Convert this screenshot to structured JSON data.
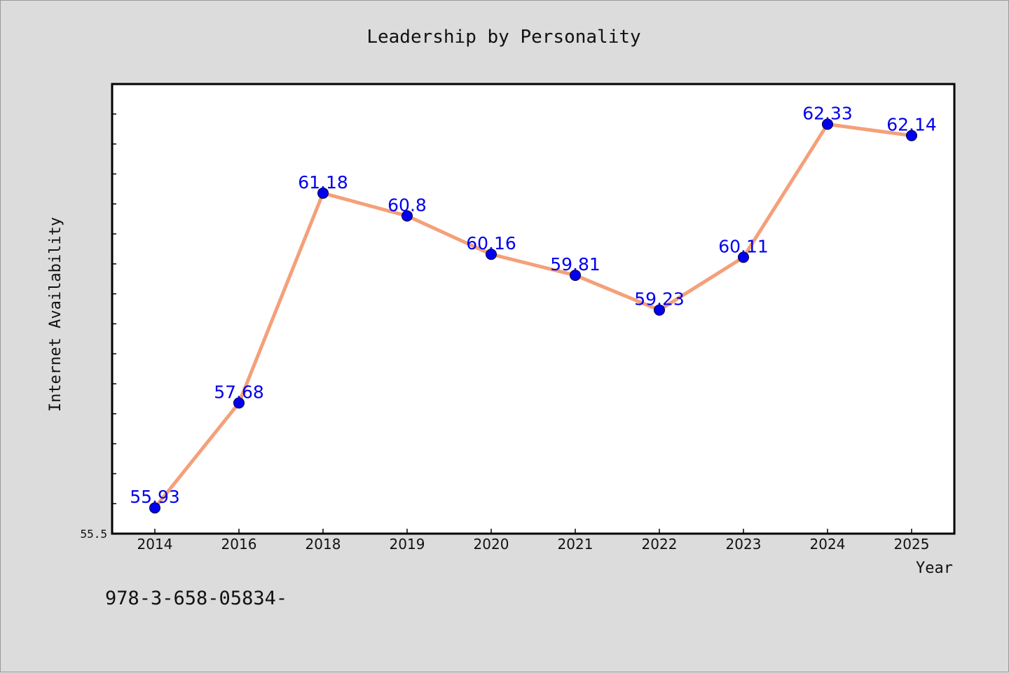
{
  "chart_data": {
    "type": "line",
    "title": "Leadership by Personality",
    "xlabel": "Year",
    "ylabel": "Internet Availability",
    "categories": [
      "2014",
      "2016",
      "2018",
      "2019",
      "2020",
      "2021",
      "2022",
      "2023",
      "2024",
      "2025"
    ],
    "series": [
      {
        "values": [
          55.93,
          57.68,
          61.18,
          60.8,
          60.16,
          59.81,
          59.23,
          60.11,
          62.33,
          62.14
        ],
        "labels": [
          "55.93",
          "57.68",
          "61.18",
          "60.8",
          "60.16",
          "59.81",
          "59.23",
          "60.11",
          "62.33",
          "62.14"
        ],
        "line_color": "#f4a07a",
        "marker_color": "#0000ee"
      }
    ],
    "ylim": [
      55.5,
      63.0
    ],
    "yticks": [
      55.5
    ],
    "ytick_labels": [
      "55.5"
    ],
    "grid": false,
    "legend": "none"
  },
  "footnote": "978-3-658-05834-",
  "colors": {
    "background": "#dcdcdc",
    "plot_background": "#ffffff",
    "line": "#f4a07a",
    "marker": "#0000ee",
    "data_label": "#0000ee"
  }
}
